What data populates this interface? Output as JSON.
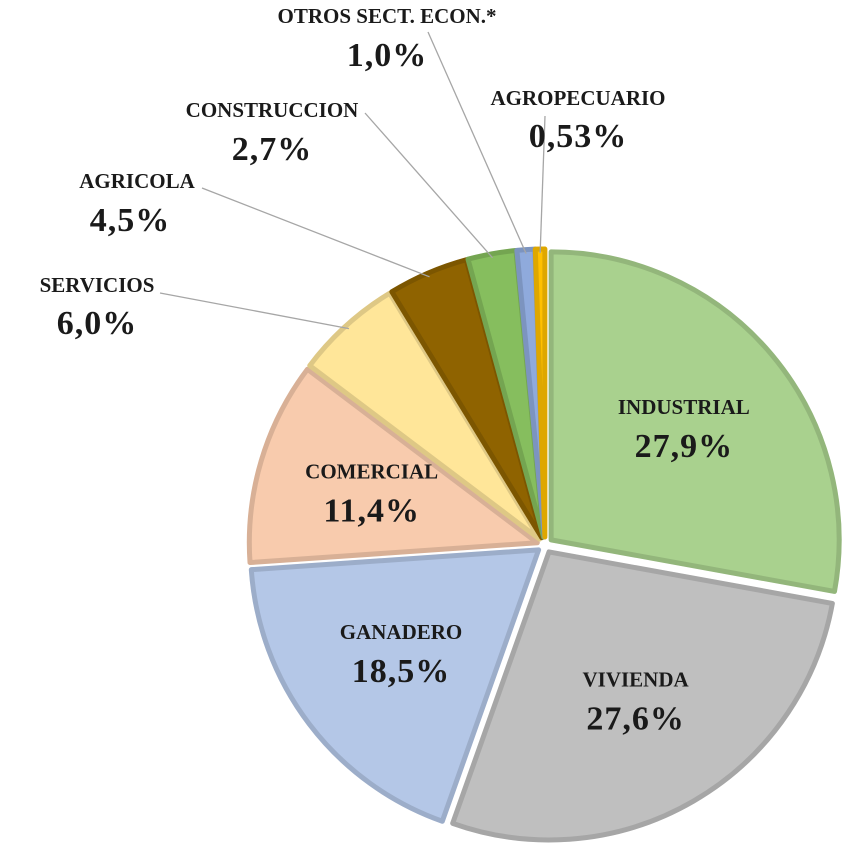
{
  "chart_data": {
    "type": "pie",
    "categories": [
      "INDUSTRIAL",
      "VIVIENDA",
      "GANADERO",
      "COMERCIAL",
      "SERVICIOS",
      "AGRICOLA",
      "CONSTRUCCION",
      "OTROS SECT. ECON.*",
      "AGROPECUARIO"
    ],
    "values": [
      27.9,
      27.6,
      18.5,
      11.4,
      6.0,
      4.5,
      2.7,
      1.0,
      0.53
    ],
    "value_labels": [
      "27,9%",
      "27,6%",
      "18,5%",
      "11,4%",
      "6,0%",
      "4,5%",
      "2,7%",
      "1,0%",
      "0,53%"
    ],
    "colors": [
      "#a9d18e",
      "#bfbfbf",
      "#b4c7e7",
      "#f8cbad",
      "#ffe699",
      "#8f6300",
      "#86be5e",
      "#8faadc",
      "#ffc000"
    ]
  }
}
